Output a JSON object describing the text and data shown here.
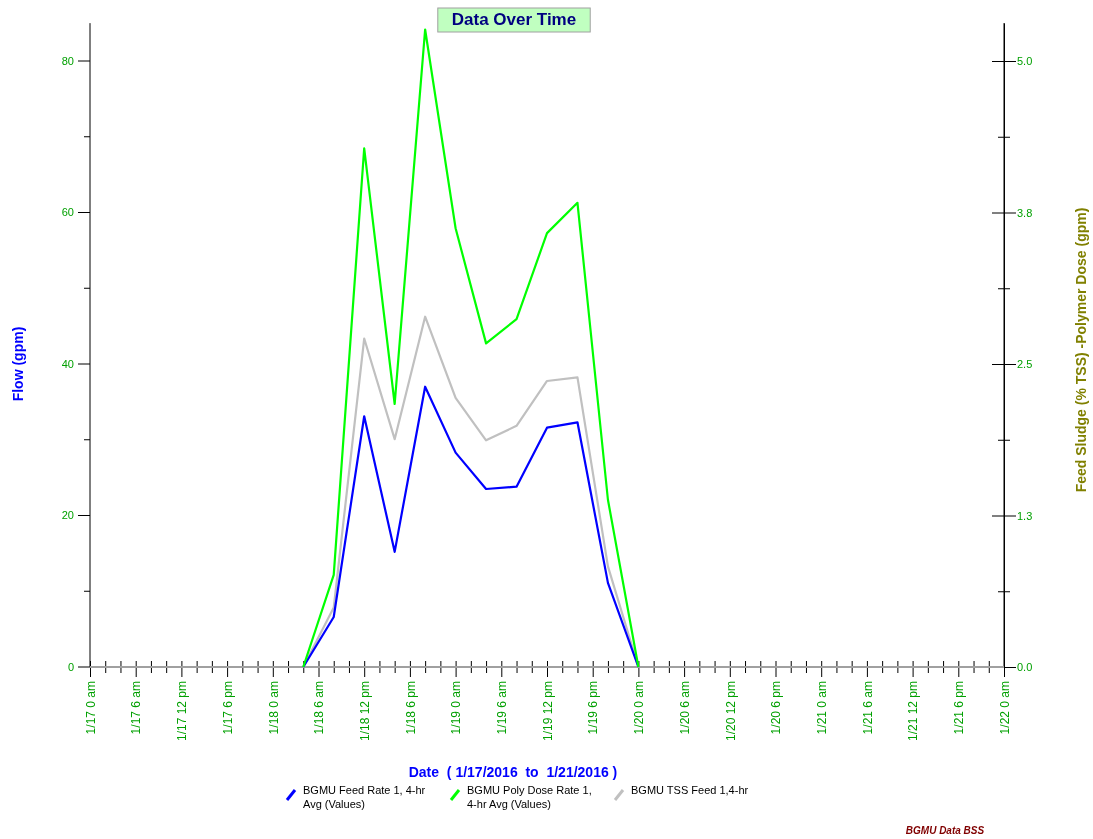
{
  "chart_data": {
    "type": "line",
    "title": "Data Over Time",
    "xlabel": "Date  ( 1/17/2016  to  1/21/2016 )",
    "ylabel": "Flow (gpm)",
    "y2label": "Feed Sludge (% TSS) -Polymer Dose (gpm)",
    "x": [
      "2016-01-18T04:00",
      "2016-01-18T08:00",
      "2016-01-18T12:00",
      "2016-01-18T16:00",
      "2016-01-18T20:00",
      "2016-01-19T00:00",
      "2016-01-19T04:00",
      "2016-01-19T08:00",
      "2016-01-19T12:00",
      "2016-01-19T16:00",
      "2016-01-19T20:00",
      "2016-01-20T00:00"
    ],
    "series": [
      {
        "name": "BGMU Feed Rate 1, 4-hr Avg (Values)",
        "color": "#0000ff",
        "values": [
          0,
          6.6,
          33.1,
          15.2,
          37.0,
          28.3,
          23.5,
          23.8,
          31.6,
          32.3,
          11.1,
          0
        ]
      },
      {
        "name": "BGMU Poly Dose Rate 1, 4-hr Avg (Values)",
        "color": "#00ff00",
        "axis": "y2",
        "values": [
          0,
          0.76,
          4.28,
          2.17,
          5.26,
          3.62,
          2.67,
          2.87,
          3.58,
          3.83,
          1.38,
          0
        ]
      },
      {
        "name": "BGMU TSS Feed 1,4-hr",
        "color": "#c0c0c0",
        "axis": "y2",
        "values": [
          0,
          0.49,
          2.71,
          1.88,
          2.89,
          2.22,
          1.87,
          1.99,
          2.36,
          2.39,
          0.83,
          0
        ]
      }
    ],
    "xlim": [
      "2016-01-17T00:00",
      "2016-01-22T00:00"
    ],
    "xticks": [
      {
        "value": "2016-01-17T00:00",
        "label": "1/17 0 am"
      },
      {
        "value": "2016-01-17T02:00",
        "label": null
      },
      {
        "value": "2016-01-17T04:00",
        "label": null
      },
      {
        "value": "2016-01-17T06:00",
        "label": "1/17 6 am"
      },
      {
        "value": "2016-01-17T08:00",
        "label": null
      },
      {
        "value": "2016-01-17T10:00",
        "label": null
      },
      {
        "value": "2016-01-17T12:00",
        "label": "1/17 12 pm"
      },
      {
        "value": "2016-01-17T14:00",
        "label": null
      },
      {
        "value": "2016-01-17T16:00",
        "label": null
      },
      {
        "value": "2016-01-17T18:00",
        "label": "1/17 6 pm"
      },
      {
        "value": "2016-01-17T20:00",
        "label": null
      },
      {
        "value": "2016-01-17T22:00",
        "label": null
      },
      {
        "value": "2016-01-18T00:00",
        "label": "1/18 0 am"
      },
      {
        "value": "2016-01-18T02:00",
        "label": null
      },
      {
        "value": "2016-01-18T04:00",
        "label": null
      },
      {
        "value": "2016-01-18T06:00",
        "label": "1/18 6 am"
      },
      {
        "value": "2016-01-18T08:00",
        "label": null
      },
      {
        "value": "2016-01-18T10:00",
        "label": null
      },
      {
        "value": "2016-01-18T12:00",
        "label": "1/18 12 pm"
      },
      {
        "value": "2016-01-18T14:00",
        "label": null
      },
      {
        "value": "2016-01-18T16:00",
        "label": null
      },
      {
        "value": "2016-01-18T18:00",
        "label": "1/18 6 pm"
      },
      {
        "value": "2016-01-18T20:00",
        "label": null
      },
      {
        "value": "2016-01-18T22:00",
        "label": null
      },
      {
        "value": "2016-01-19T00:00",
        "label": "1/19 0 am"
      },
      {
        "value": "2016-01-19T02:00",
        "label": null
      },
      {
        "value": "2016-01-19T04:00",
        "label": null
      },
      {
        "value": "2016-01-19T06:00",
        "label": "1/19 6 am"
      },
      {
        "value": "2016-01-19T08:00",
        "label": null
      },
      {
        "value": "2016-01-19T10:00",
        "label": null
      },
      {
        "value": "2016-01-19T12:00",
        "label": "1/19 12 pm"
      },
      {
        "value": "2016-01-19T14:00",
        "label": null
      },
      {
        "value": "2016-01-19T16:00",
        "label": null
      },
      {
        "value": "2016-01-19T18:00",
        "label": "1/19 6 pm"
      },
      {
        "value": "2016-01-19T20:00",
        "label": null
      },
      {
        "value": "2016-01-19T22:00",
        "label": null
      },
      {
        "value": "2016-01-20T00:00",
        "label": "1/20 0 am"
      },
      {
        "value": "2016-01-20T02:00",
        "label": null
      },
      {
        "value": "2016-01-20T04:00",
        "label": null
      },
      {
        "value": "2016-01-20T06:00",
        "label": "1/20 6 am"
      },
      {
        "value": "2016-01-20T08:00",
        "label": null
      },
      {
        "value": "2016-01-20T10:00",
        "label": null
      },
      {
        "value": "2016-01-20T12:00",
        "label": "1/20 12 pm"
      },
      {
        "value": "2016-01-20T14:00",
        "label": null
      },
      {
        "value": "2016-01-20T16:00",
        "label": null
      },
      {
        "value": "2016-01-20T18:00",
        "label": "1/20 6 pm"
      },
      {
        "value": "2016-01-20T20:00",
        "label": null
      },
      {
        "value": "2016-01-20T22:00",
        "label": null
      },
      {
        "value": "2016-01-21T00:00",
        "label": "1/21 0 am"
      },
      {
        "value": "2016-01-21T02:00",
        "label": null
      },
      {
        "value": "2016-01-21T04:00",
        "label": null
      },
      {
        "value": "2016-01-21T06:00",
        "label": "1/21 6 am"
      },
      {
        "value": "2016-01-21T08:00",
        "label": null
      },
      {
        "value": "2016-01-21T10:00",
        "label": null
      },
      {
        "value": "2016-01-21T12:00",
        "label": "1/21 12 pm"
      },
      {
        "value": "2016-01-21T14:00",
        "label": null
      },
      {
        "value": "2016-01-21T16:00",
        "label": null
      },
      {
        "value": "2016-01-21T18:00",
        "label": "1/21 6 pm"
      },
      {
        "value": "2016-01-21T20:00",
        "label": null
      },
      {
        "value": "2016-01-21T22:00",
        "label": null
      },
      {
        "value": "2016-01-22T00:00",
        "label": "1/22 0 am"
      }
    ],
    "ylim": [
      0,
      85
    ],
    "yticks": [
      0,
      {
        "value": 10,
        "label": null
      },
      20,
      {
        "value": 30,
        "label": null
      },
      40,
      {
        "value": 50,
        "label": null
      },
      60,
      {
        "value": 70,
        "label": null
      },
      80
    ],
    "y2lim": [
      0,
      5.3125
    ],
    "y2ticks": [
      {
        "value": 0,
        "label": "0.0"
      },
      {
        "value": 0.625,
        "label": null
      },
      {
        "value": 1.25,
        "label": "1.3"
      },
      {
        "value": 1.875,
        "label": null
      },
      {
        "value": 2.5,
        "label": "2.5"
      },
      {
        "value": 3.125,
        "label": null
      },
      {
        "value": 3.75,
        "label": "3.8"
      },
      {
        "value": 4.375,
        "label": null
      },
      {
        "value": 5,
        "label": "5.0"
      }
    ],
    "legend": "bottom",
    "grid": false,
    "marker": "none",
    "line_style": "solid",
    "annotations": [
      "BGMU Data BSS"
    ]
  }
}
